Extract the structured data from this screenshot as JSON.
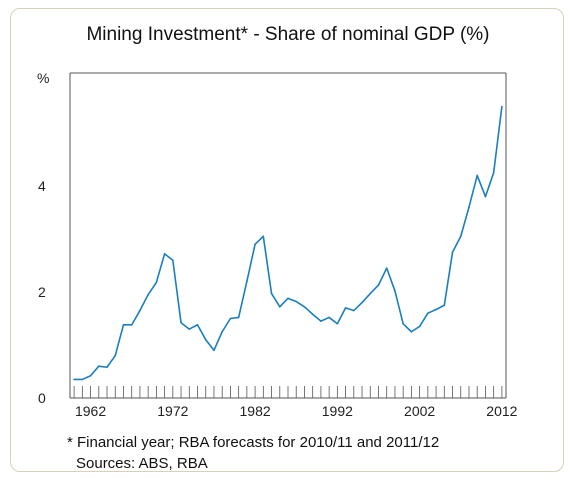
{
  "chart_data": {
    "type": "line",
    "title": "Mining Investment* - Share of nominal GDP (%)",
    "ylabel": "%",
    "xlabel": "",
    "xlim": [
      1959.5,
      2012.5
    ],
    "ylim": [
      0,
      6
    ],
    "y_ticks": [
      0,
      2,
      4
    ],
    "x_tick_labels": [
      1962,
      1972,
      1982,
      1992,
      2002,
      2012
    ],
    "grid": false,
    "color": "#1a7fbf",
    "series": [
      {
        "x": [
          1960,
          1961,
          1962,
          1963,
          1964,
          1965,
          1966,
          1967,
          1968,
          1969,
          1970,
          1971,
          1972,
          1973,
          1974,
          1975,
          1976,
          1977,
          1978,
          1979,
          1980,
          1981,
          1982,
          1983,
          1984,
          1985,
          1986,
          1987,
          1988,
          1989,
          1990,
          1991,
          1992,
          1993,
          1994,
          1995,
          1996,
          1997,
          1998,
          1999,
          2000,
          2001,
          2002,
          2003,
          2004,
          2005,
          2006,
          2007,
          2008,
          2009,
          2010,
          2011,
          2012
        ],
        "values": [
          0.35,
          0.35,
          0.42,
          0.6,
          0.58,
          0.8,
          1.38,
          1.38,
          1.65,
          1.95,
          2.18,
          2.72,
          2.6,
          1.42,
          1.3,
          1.38,
          1.1,
          0.9,
          1.25,
          1.5,
          1.52,
          2.2,
          2.9,
          3.05,
          1.97,
          1.72,
          1.88,
          1.82,
          1.72,
          1.58,
          1.45,
          1.52,
          1.4,
          1.7,
          1.65,
          1.8,
          1.97,
          2.13,
          2.45,
          2.02,
          1.4,
          1.25,
          1.35,
          1.6,
          1.67,
          1.75,
          2.75,
          3.05,
          3.6,
          4.2,
          3.8,
          4.25,
          5.5
        ]
      }
    ]
  },
  "footnote": "* Financial year; RBA forecasts for 2010/11 and 2011/12",
  "sources": "Sources: ABS, RBA"
}
